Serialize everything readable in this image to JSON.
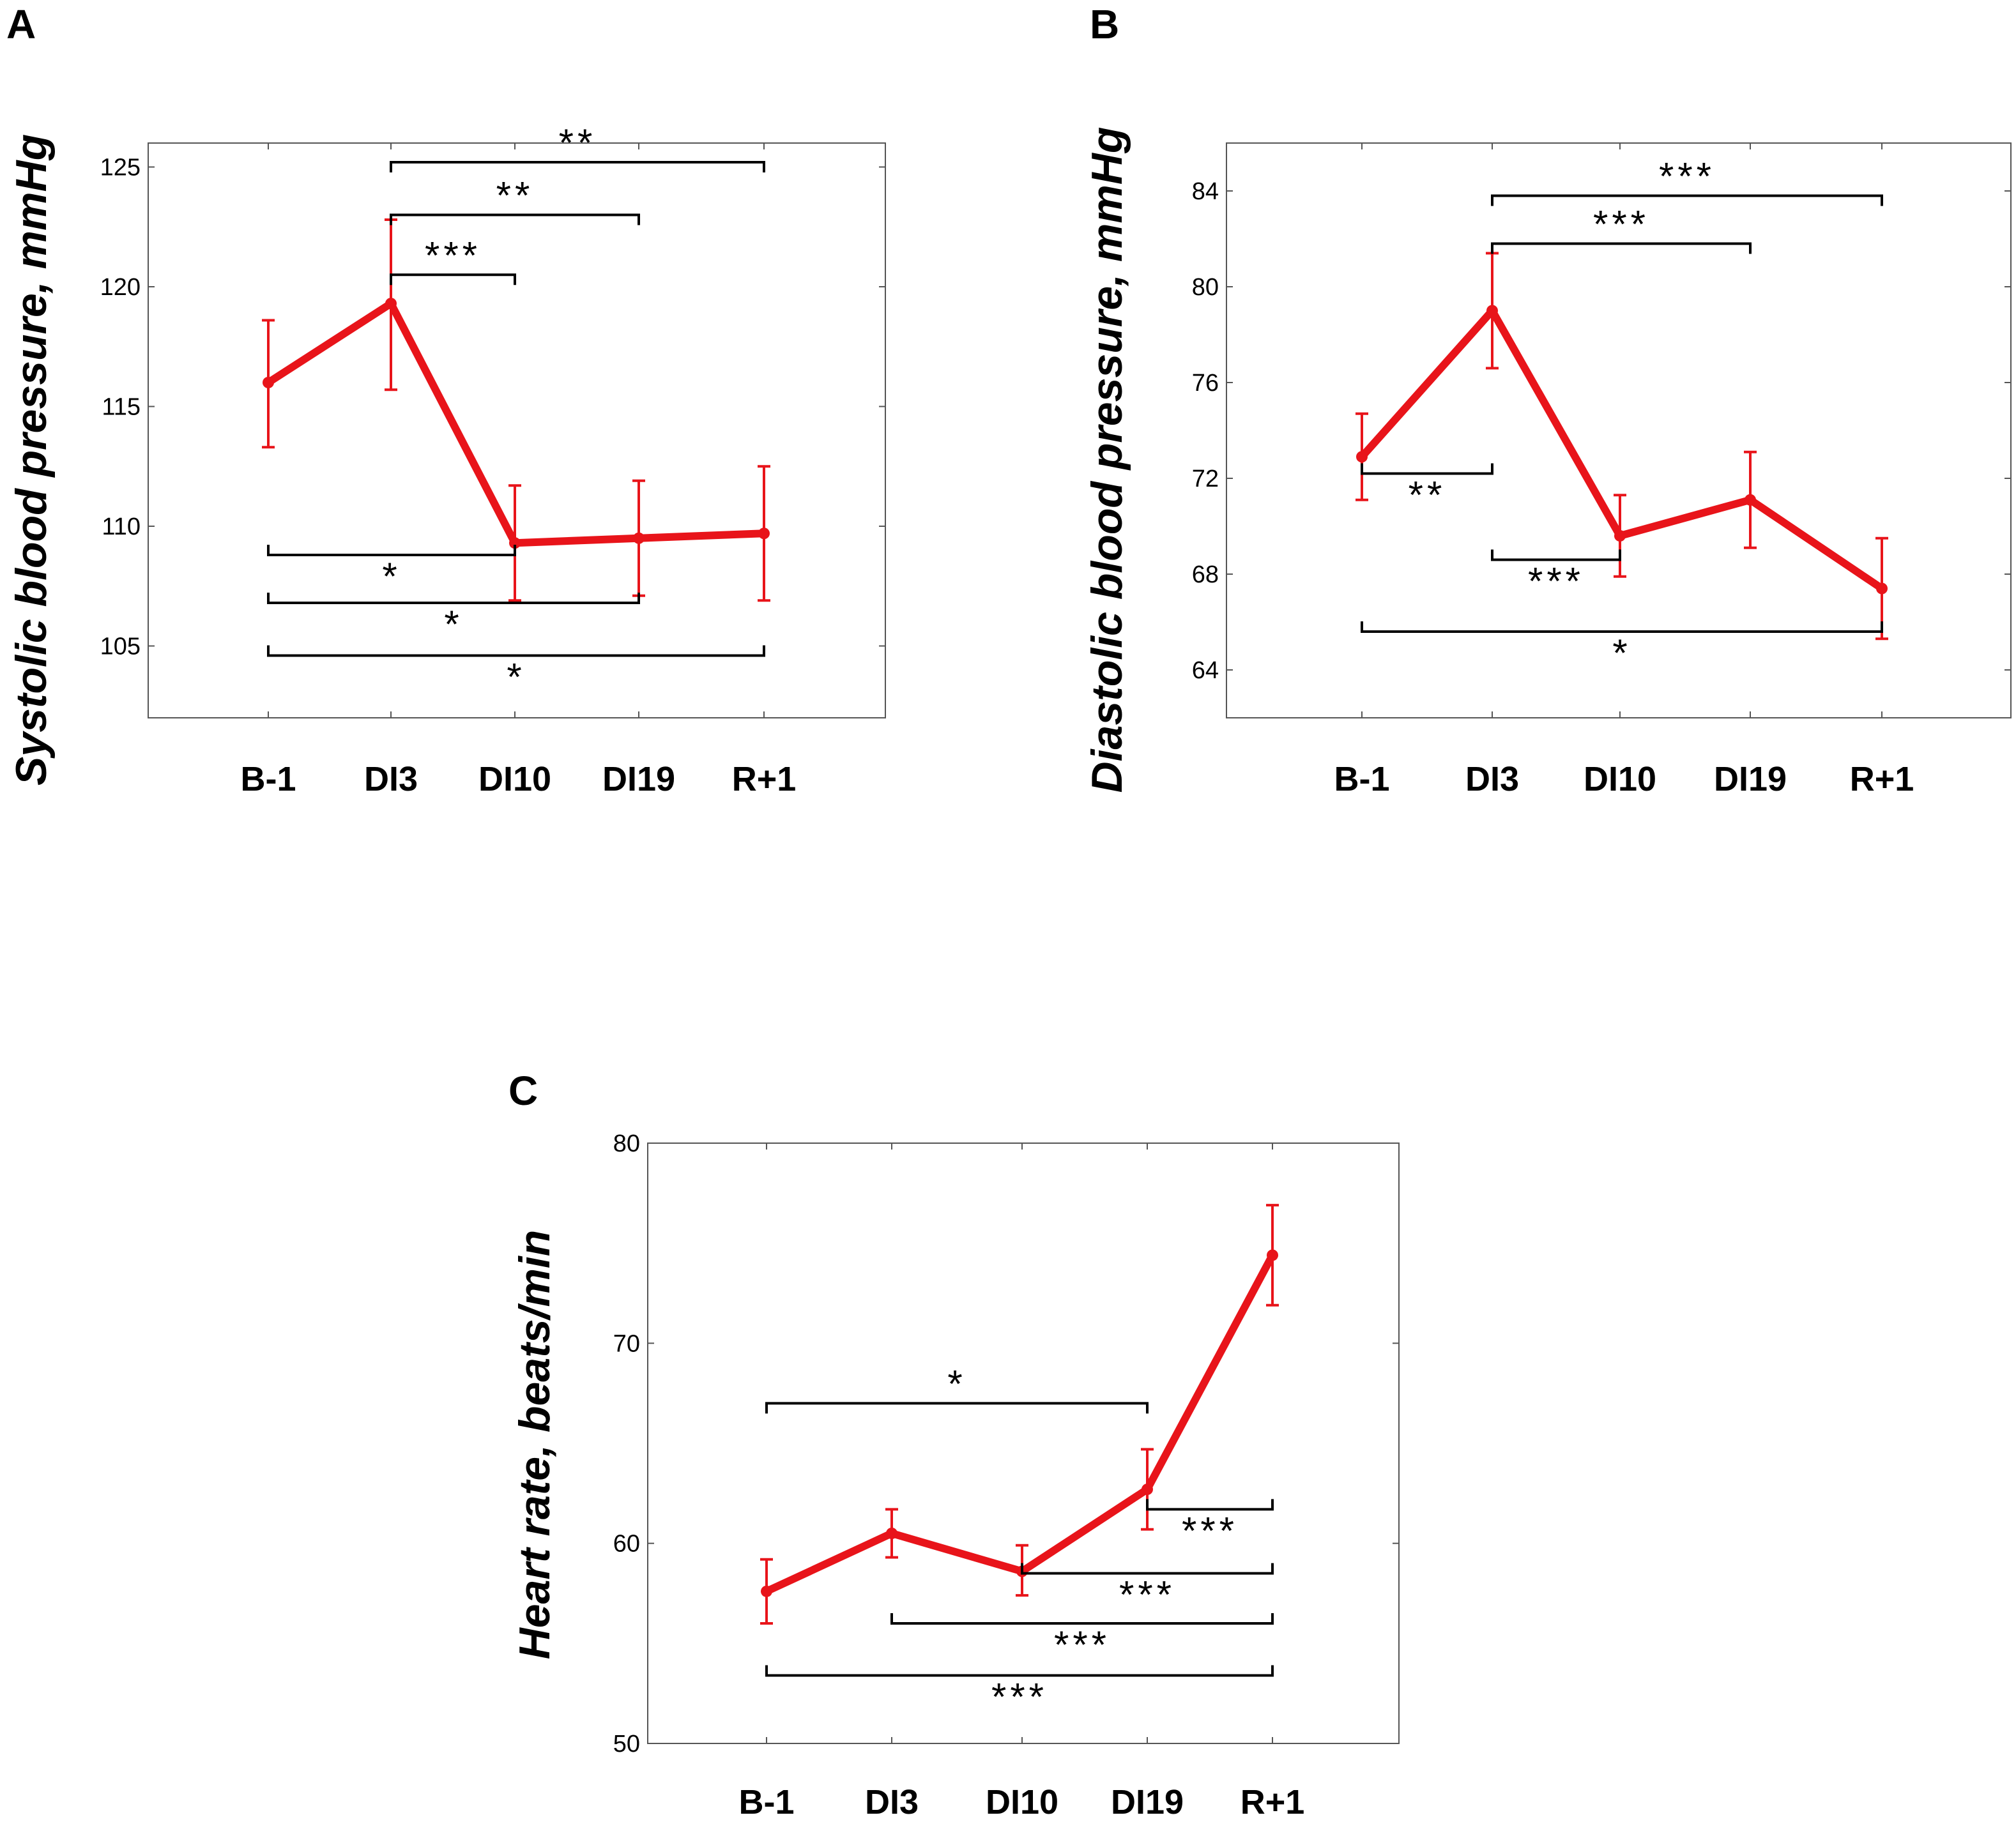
{
  "colors": {
    "series": "#e8141a",
    "axis": "#555555",
    "text": "#000000"
  },
  "chart_data": [
    {
      "type": "line",
      "panel": "A",
      "title": "",
      "ylabel": "Systolic blood pressure, mmHg",
      "xlabel": "",
      "categories": [
        "B-1",
        "DI3",
        "DI10",
        "DI19",
        "R+1"
      ],
      "ylim": [
        102,
        126
      ],
      "yticks": [
        105,
        110,
        115,
        120,
        125
      ],
      "ytick_labels": [
        "105",
        "110",
        "115",
        "120",
        "125"
      ],
      "series": [
        {
          "name": "Systolic BP",
          "values": [
            116.0,
            119.3,
            109.3,
            109.5,
            109.7
          ],
          "err_low": [
            113.3,
            115.7,
            106.9,
            107.1,
            106.9
          ],
          "err_high": [
            118.6,
            122.8,
            111.7,
            111.9,
            112.5
          ]
        }
      ],
      "significance": [
        {
          "from": 1,
          "to": 4,
          "label": "**",
          "value": 125.2,
          "dir": "down"
        },
        {
          "from": 1,
          "to": 3,
          "label": "**",
          "value": 123.0,
          "dir": "down"
        },
        {
          "from": 1,
          "to": 2,
          "label": "***",
          "value": 120.5,
          "dir": "down"
        },
        {
          "from": 0,
          "to": 2,
          "label": "*",
          "value": 108.8,
          "dir": "up"
        },
        {
          "from": 0,
          "to": 3,
          "label": "*",
          "value": 106.8,
          "dir": "up"
        },
        {
          "from": 0,
          "to": 4,
          "label": "*",
          "value": 104.6,
          "dir": "up"
        }
      ]
    },
    {
      "type": "line",
      "panel": "B",
      "title": "",
      "ylabel": "Diastolic blood pressure, mmHg",
      "xlabel": "",
      "categories": [
        "B-1",
        "DI3",
        "DI10",
        "DI19",
        "R+1"
      ],
      "ylim": [
        62,
        86
      ],
      "yticks": [
        64,
        68,
        72,
        76,
        80,
        84
      ],
      "ytick_labels": [
        "64",
        "68",
        "72",
        "76",
        "80",
        "84"
      ],
      "series": [
        {
          "name": "Diastolic BP",
          "values": [
            72.9,
            79.0,
            69.6,
            71.1,
            67.4
          ],
          "err_low": [
            71.1,
            76.6,
            67.9,
            69.1,
            65.3
          ],
          "err_high": [
            74.7,
            81.4,
            71.3,
            73.1,
            69.5
          ]
        }
      ],
      "significance": [
        {
          "from": 1,
          "to": 4,
          "label": "***",
          "value": 83.8,
          "dir": "down"
        },
        {
          "from": 1,
          "to": 3,
          "label": "***",
          "value": 81.8,
          "dir": "down"
        },
        {
          "from": 0,
          "to": 1,
          "label": "**",
          "value": 72.2,
          "dir": "up"
        },
        {
          "from": 1,
          "to": 2,
          "label": "***",
          "value": 68.6,
          "dir": "up"
        },
        {
          "from": 0,
          "to": 4,
          "label": "*",
          "value": 65.6,
          "dir": "up"
        }
      ]
    },
    {
      "type": "line",
      "panel": "C",
      "title": "",
      "ylabel": "Heart rate, beats/min",
      "xlabel": "",
      "categories": [
        "B-1",
        "DI3",
        "DI10",
        "DI19",
        "R+1"
      ],
      "ylim": [
        50,
        80
      ],
      "yticks": [
        50,
        60,
        70,
        80
      ],
      "ytick_labels": [
        "50",
        "60",
        "70",
        "80"
      ],
      "series": [
        {
          "name": "Heart rate",
          "values": [
            57.6,
            60.5,
            58.6,
            62.7,
            74.4
          ],
          "err_low": [
            56.0,
            59.3,
            57.4,
            60.7,
            71.9
          ],
          "err_high": [
            59.2,
            61.7,
            59.9,
            64.7,
            76.9
          ]
        }
      ],
      "significance": [
        {
          "from": 0,
          "to": 3,
          "label": "*",
          "value": 67.0,
          "dir": "down"
        },
        {
          "from": 3,
          "to": 4,
          "label": "***",
          "value": 61.7,
          "dir": "up"
        },
        {
          "from": 2,
          "to": 4,
          "label": "***",
          "value": 58.5,
          "dir": "up"
        },
        {
          "from": 1,
          "to": 4,
          "label": "***",
          "value": 56.0,
          "dir": "up"
        },
        {
          "from": 0,
          "to": 4,
          "label": "***",
          "value": 53.4,
          "dir": "up"
        }
      ]
    }
  ]
}
